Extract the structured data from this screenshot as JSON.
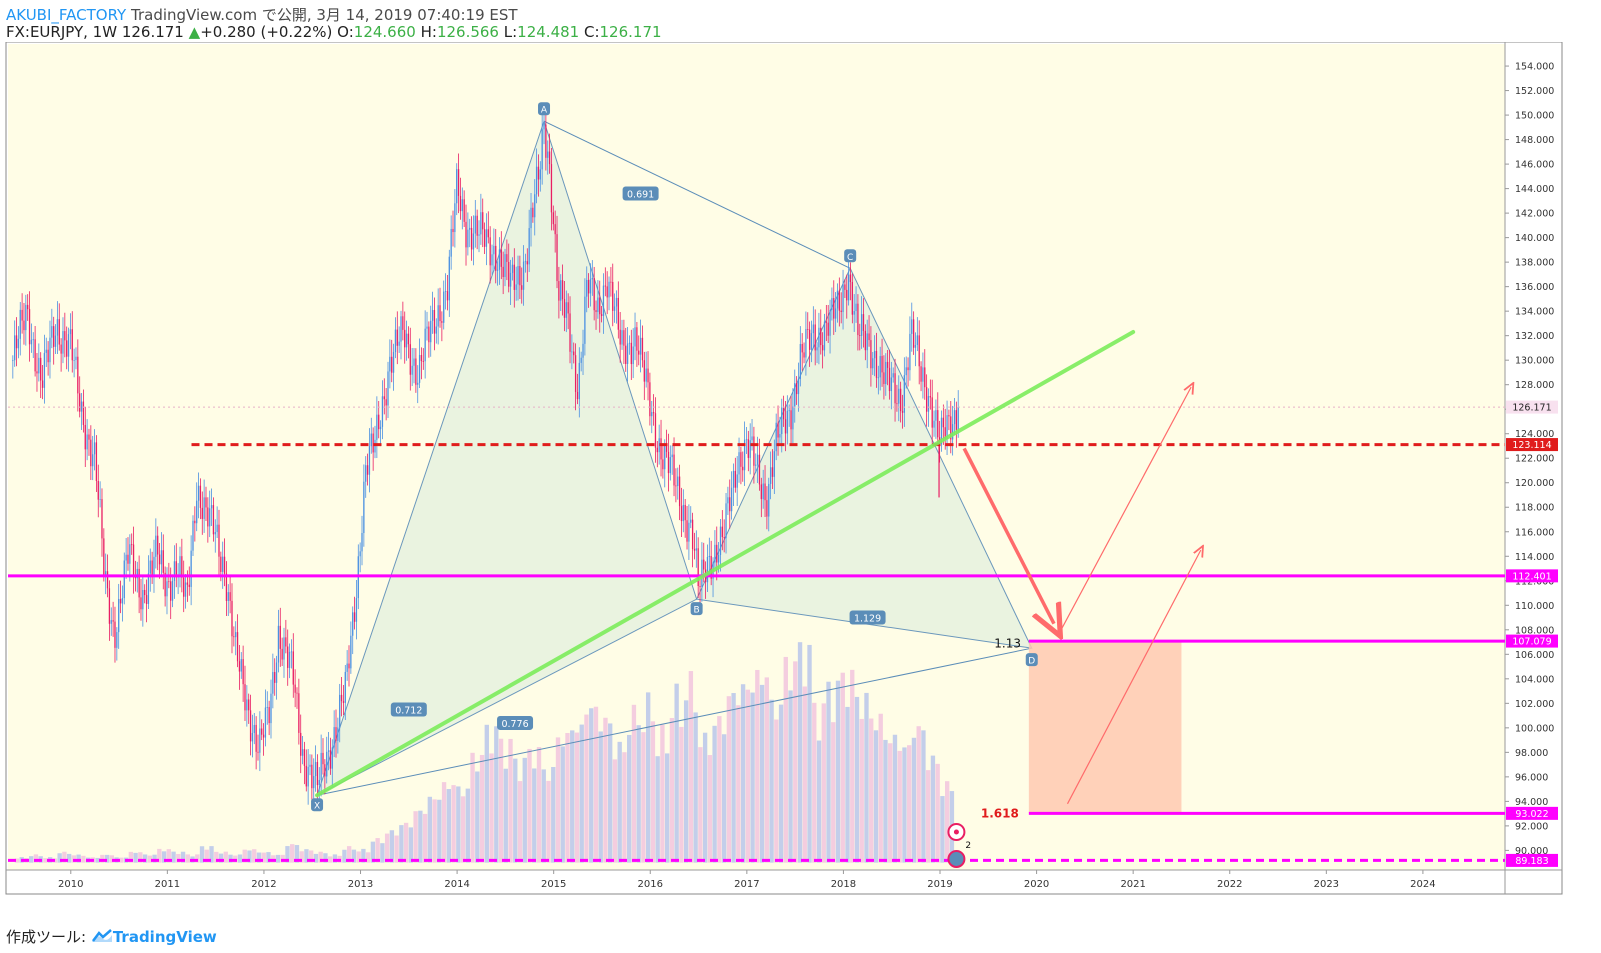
{
  "header": {
    "author": "AKUBI_FACTORY",
    "published": "TradingView.com で公開, 3月 14, 2019 07:40:19 EST",
    "symbol": "FX:EURJPY, 1W 126.171",
    "change": "+0.280 (+0.22%)",
    "o_label": "O:",
    "o_value": "124.660",
    "h_label": "H:",
    "h_value": "126.566",
    "l_label": "L:",
    "l_value": "124.481",
    "c_label": "C:",
    "c_value": "126.171"
  },
  "footer": {
    "label": "作成ツール:",
    "brand": "TradingView"
  },
  "colors": {
    "background": "#fffde6",
    "up_candle": "#4a90e2",
    "down_candle": "#e91e63",
    "pattern_fill": "#e8f3e0",
    "pattern_line": "#5b8db8",
    "trendline": "#7ded5c",
    "resistance": "#e01c1c",
    "support": "#ff00ff",
    "target_box": "#ffc9b0",
    "arrow": "#ff6b6b"
  },
  "chart_data": {
    "type": "candlestick",
    "instrument": "FX:EURJPY",
    "interval": "1W",
    "x_ticks": [
      "2010",
      "2011",
      "2012",
      "2013",
      "2014",
      "2015",
      "2016",
      "2017",
      "2018",
      "2019",
      "2020",
      "2021",
      "2022",
      "2023",
      "2024"
    ],
    "y_ticks": [
      "90.000",
      "92.000",
      "94.000",
      "96.000",
      "98.000",
      "100.000",
      "102.000",
      "104.000",
      "106.000",
      "108.000",
      "110.000",
      "112.000",
      "114.000",
      "116.000",
      "118.000",
      "120.000",
      "122.000",
      "124.000",
      "126.000",
      "128.000",
      "130.000",
      "132.000",
      "134.000",
      "136.000",
      "138.000",
      "140.000",
      "142.000",
      "144.000",
      "146.000",
      "148.000",
      "150.000",
      "152.000",
      "154.000"
    ],
    "ylim": [
      88.4,
      155.8
    ],
    "xlim": [
      2009.35,
      2024.85
    ],
    "price_path": [
      [
        2009.4,
        130
      ],
      [
        2009.55,
        134
      ],
      [
        2009.7,
        128
      ],
      [
        2009.85,
        133
      ],
      [
        2010.0,
        131
      ],
      [
        2010.1,
        126
      ],
      [
        2010.25,
        122
      ],
      [
        2010.35,
        112
      ],
      [
        2010.45,
        108
      ],
      [
        2010.6,
        114
      ],
      [
        2010.75,
        111
      ],
      [
        2010.9,
        114
      ],
      [
        2011.0,
        112
      ],
      [
        2011.1,
        113
      ],
      [
        2011.2,
        110
      ],
      [
        2011.3,
        120
      ],
      [
        2011.4,
        117
      ],
      [
        2011.5,
        116
      ],
      [
        2011.6,
        113
      ],
      [
        2011.7,
        106
      ],
      [
        2011.8,
        103
      ],
      [
        2011.95,
        98
      ],
      [
        2012.05,
        101
      ],
      [
        2012.15,
        108
      ],
      [
        2012.3,
        104
      ],
      [
        2012.4,
        98
      ],
      [
        2012.55,
        95
      ],
      [
        2012.7,
        99
      ],
      [
        2012.85,
        103
      ],
      [
        2012.95,
        111
      ],
      [
        2013.05,
        121
      ],
      [
        2013.15,
        123
      ],
      [
        2013.3,
        130
      ],
      [
        2013.45,
        132
      ],
      [
        2013.6,
        129
      ],
      [
        2013.75,
        133
      ],
      [
        2013.9,
        136
      ],
      [
        2014.0,
        144
      ],
      [
        2014.1,
        141
      ],
      [
        2014.25,
        140
      ],
      [
        2014.4,
        139
      ],
      [
        2014.55,
        136
      ],
      [
        2014.7,
        138
      ],
      [
        2014.85,
        145
      ],
      [
        2014.9,
        149.5
      ],
      [
        2014.96,
        146
      ],
      [
        2015.05,
        135
      ],
      [
        2015.15,
        133
      ],
      [
        2015.25,
        128
      ],
      [
        2015.35,
        136
      ],
      [
        2015.45,
        134
      ],
      [
        2015.55,
        137
      ],
      [
        2015.7,
        131
      ],
      [
        2015.85,
        132
      ],
      [
        2015.95,
        128
      ],
      [
        2016.1,
        123
      ],
      [
        2016.3,
        119
      ],
      [
        2016.43,
        116
      ],
      [
        2016.5,
        111
      ],
      [
        2016.6,
        114
      ],
      [
        2016.75,
        115
      ],
      [
        2016.9,
        122
      ],
      [
        2017.0,
        123
      ],
      [
        2017.1,
        121
      ],
      [
        2017.2,
        119
      ],
      [
        2017.3,
        123
      ],
      [
        2017.45,
        126
      ],
      [
        2017.55,
        130
      ],
      [
        2017.7,
        132
      ],
      [
        2017.85,
        133
      ],
      [
        2017.95,
        134
      ],
      [
        2018.05,
        137.5
      ],
      [
        2018.15,
        132
      ],
      [
        2018.3,
        131
      ],
      [
        2018.45,
        128
      ],
      [
        2018.6,
        127
      ],
      [
        2018.7,
        132
      ],
      [
        2018.8,
        129
      ],
      [
        2018.9,
        127
      ],
      [
        2019.0,
        123
      ],
      [
        2019.08,
        124.5
      ],
      [
        2019.18,
        126.17
      ]
    ],
    "lines": [
      {
        "label": "123.114",
        "value": 123.114,
        "style": "dashed",
        "color": "#e01c1c"
      },
      {
        "label": "112.401",
        "value": 112.401,
        "style": "solid",
        "color": "#ff00ff"
      },
      {
        "label": "107.079",
        "value": 107.079,
        "style": "solid",
        "color": "#ff00ff"
      },
      {
        "label": "93.022",
        "value": 93.022,
        "style": "solid",
        "color": "#ff00ff"
      },
      {
        "label": "89.183",
        "value": 89.183,
        "style": "dashed",
        "color": "#ff00ff"
      },
      {
        "label": "126.171",
        "value": 126.171,
        "style": "dotted",
        "color": "#e6b0c8"
      }
    ],
    "pattern": {
      "points": [
        {
          "label": "X",
          "x": 2012.55,
          "y": 94.5
        },
        {
          "label": "A",
          "x": 2014.9,
          "y": 149.5
        },
        {
          "label": "B",
          "x": 2016.48,
          "y": 110.5
        },
        {
          "label": "C",
          "x": 2018.07,
          "y": 137.5
        },
        {
          "label": "D",
          "x": 2019.95,
          "y": 106.5
        }
      ],
      "ratios": [
        {
          "label": "0.691",
          "x": 2015.9,
          "y": 143.6
        },
        {
          "label": "0.712",
          "x": 2013.5,
          "y": 101.5
        },
        {
          "label": "1.129",
          "x": 2018.25,
          "y": 109.0
        },
        {
          "label": "0.776",
          "x": 2014.6,
          "y": 100.4
        }
      ],
      "fib_labels": [
        {
          "label": "1.13",
          "x": 2019.7,
          "y": 106.9
        },
        {
          "label": "1.618",
          "x": 2019.62,
          "y": 93.0
        }
      ]
    },
    "volume": [
      2,
      3,
      2,
      4,
      3,
      2,
      3,
      2,
      4,
      3,
      5,
      4,
      3,
      6,
      4,
      3,
      5,
      4,
      3,
      7,
      5,
      4,
      3,
      6,
      5,
      9,
      12,
      15,
      20,
      25,
      30,
      28,
      40,
      50,
      45,
      38,
      42,
      35,
      48,
      52,
      60,
      55,
      45,
      58,
      62,
      50,
      65,
      70,
      48,
      55,
      65,
      68,
      72,
      60,
      75,
      80,
      58,
      66,
      70,
      62,
      55,
      48,
      45,
      52,
      40,
      30
    ]
  }
}
